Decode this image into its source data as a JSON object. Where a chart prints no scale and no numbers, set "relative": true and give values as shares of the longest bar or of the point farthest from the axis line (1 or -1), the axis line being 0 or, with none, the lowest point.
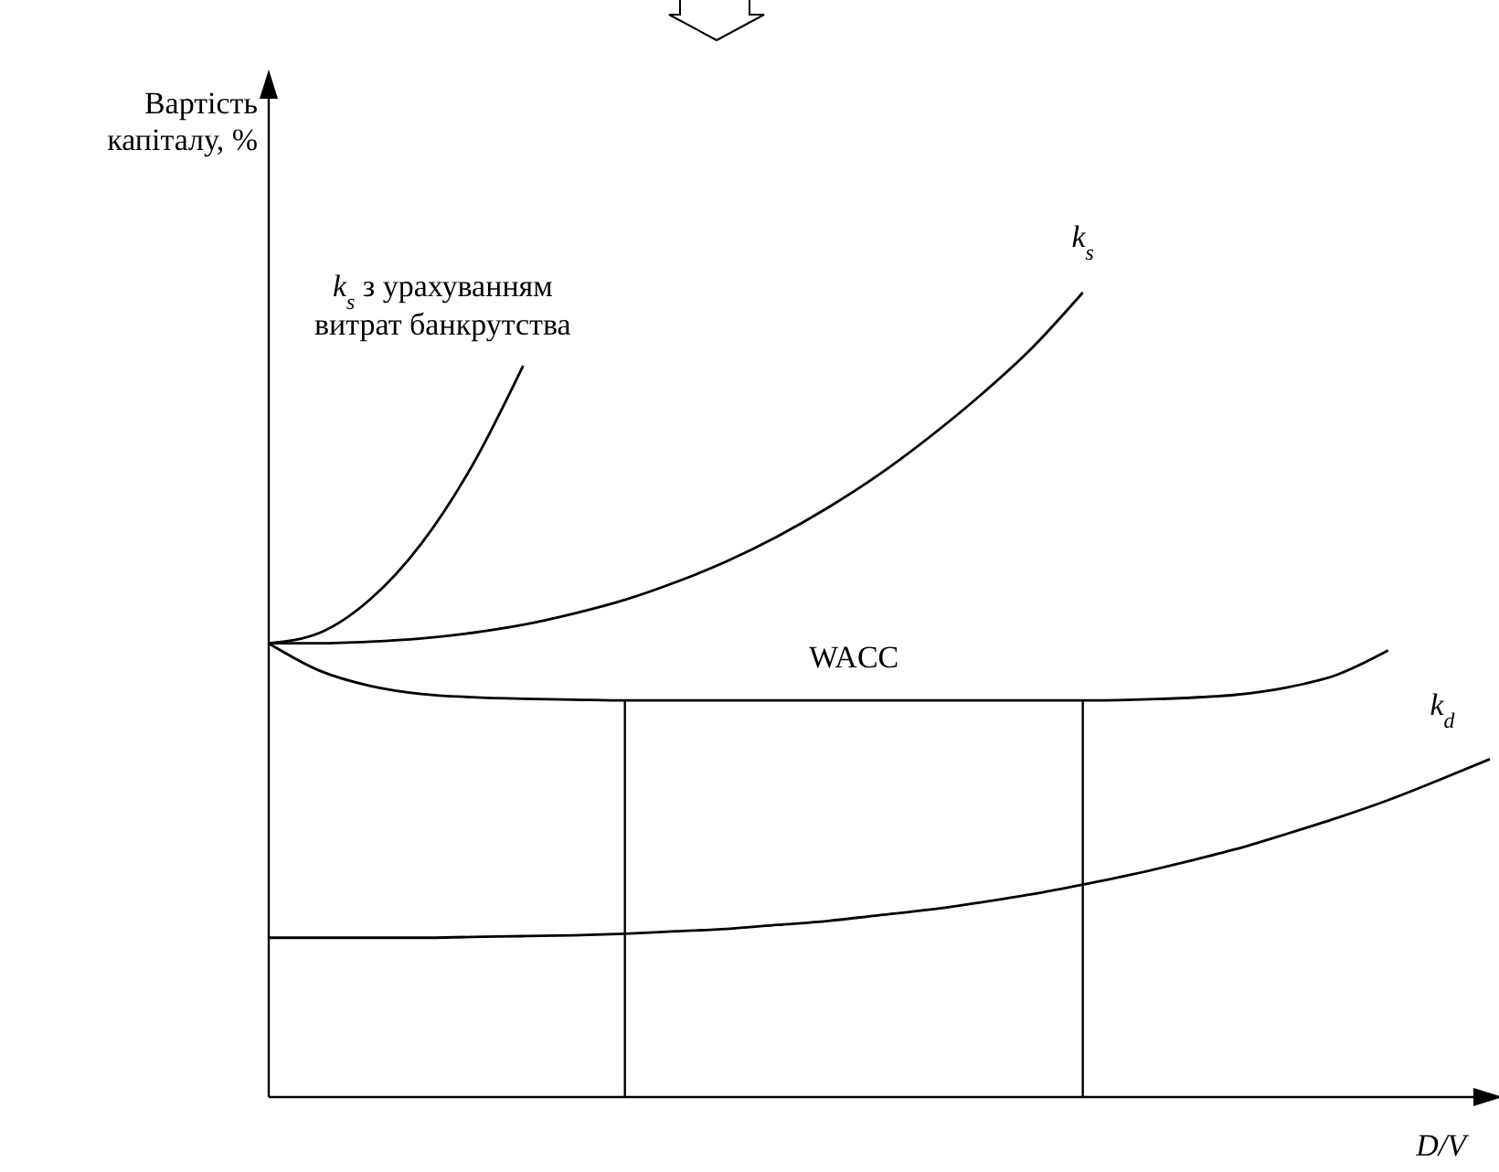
{
  "chart_data": {
    "type": "line",
    "relative": true,
    "ylabel": "Вартість капіталу, %",
    "xlabel": "D/V",
    "categories": [
      null,
      null,
      null,
      null,
      null,
      null,
      null,
      null,
      null,
      null,
      null,
      null,
      null,
      null,
      null,
      null,
      null,
      null,
      null,
      null,
      null,
      null,
      null,
      null,
      null
    ],
    "series": [
      {
        "name": "k$_{s}$ з урахуванням витрат банкрутства",
        "color": "#000000",
        "values": [
          0.564,
          0.577,
          0.619,
          0.688,
          0.785,
          0.909,
          null,
          null,
          null,
          null,
          null,
          null,
          null,
          null,
          null,
          null,
          null,
          null,
          null,
          null,
          null,
          null,
          null,
          null,
          null
        ]
      },
      {
        "name": "k$_{s}$",
        "color": "#000000",
        "values": [
          0.564,
          0.564,
          0.566,
          0.57,
          0.577,
          0.587,
          0.601,
          0.618,
          0.64,
          0.666,
          0.697,
          0.733,
          0.774,
          0.821,
          0.873,
          0.931,
          1.0,
          null,
          null,
          null,
          null,
          null,
          null,
          null,
          null
        ]
      },
      {
        "name": "WACC",
        "color": "#000000",
        "values": [
          0.564,
          0.53,
          0.511,
          0.501,
          0.497,
          0.495,
          0.494,
          0.493,
          0.493,
          0.493,
          0.493,
          0.493,
          0.493,
          0.493,
          0.493,
          0.493,
          0.493,
          0.494,
          0.496,
          0.5,
          0.509,
          0.525,
          0.555,
          null,
          null
        ]
      },
      {
        "name": "k$_{d}$",
        "color": "#000000",
        "values": [
          0.198,
          0.198,
          0.198,
          0.198,
          0.199,
          0.2,
          0.201,
          0.203,
          0.206,
          0.209,
          0.214,
          0.219,
          0.226,
          0.233,
          0.242,
          0.252,
          0.264,
          0.277,
          0.292,
          0.308,
          0.327,
          0.347,
          0.369,
          0.394,
          0.42
        ]
      }
    ],
    "line_style": "solid",
    "marker": "none"
  }
}
